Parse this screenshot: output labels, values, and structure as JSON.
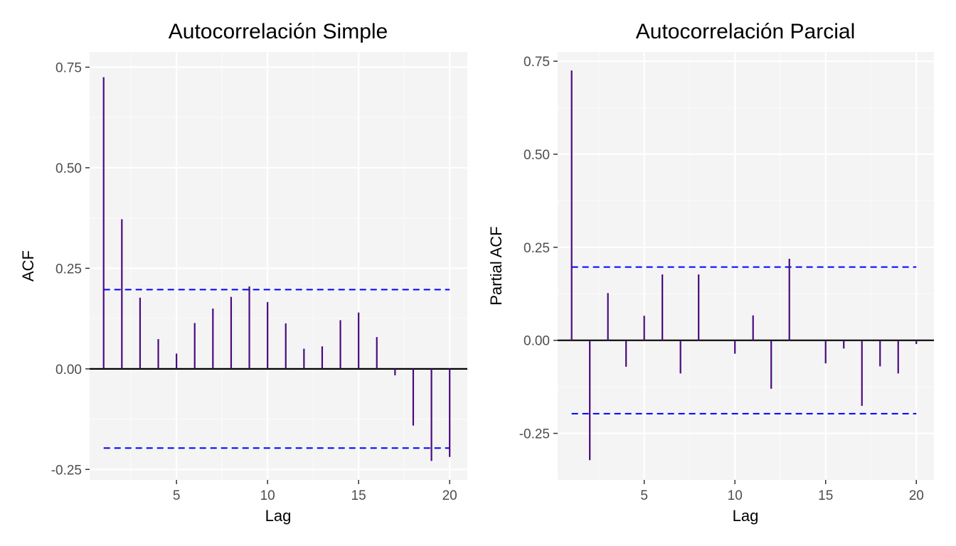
{
  "colors": {
    "panel_background": "#f4f4f4",
    "grid_major": "#ffffff",
    "grid_minor": "#fafafa",
    "bars": "#4b0a7f",
    "zero_line": "#000000",
    "confidence_lines": "#0000ff",
    "tick_text": "#4d4d4d"
  },
  "chart_data": [
    {
      "type": "bar",
      "style": "lollipop-spikes",
      "title": "Autocorrelación Simple",
      "xlabel": "Lag",
      "ylabel": "ACF",
      "xlim": [
        0.23,
        20.97
      ],
      "ylim": [
        -0.276,
        0.788
      ],
      "x_ticks": [
        5,
        10,
        15,
        20
      ],
      "x_tick_labels": [
        "5",
        "10",
        "15",
        "20"
      ],
      "y_ticks": [
        -0.25,
        0.0,
        0.25,
        0.5,
        0.75
      ],
      "y_tick_labels": [
        "-0.25",
        "0.00",
        "0.25",
        "0.50",
        "0.75"
      ],
      "grid": true,
      "confidence_bounds": [
        0.197,
        -0.197
      ],
      "x": [
        1,
        2,
        3,
        4,
        5,
        6,
        7,
        8,
        9,
        10,
        11,
        12,
        13,
        14,
        15,
        16,
        17,
        18,
        19,
        20
      ],
      "values": [
        0.725,
        0.372,
        0.177,
        0.074,
        0.038,
        0.114,
        0.15,
        0.179,
        0.205,
        0.166,
        0.113,
        0.05,
        0.056,
        0.121,
        0.14,
        0.079,
        -0.016,
        -0.141,
        -0.229,
        -0.219
      ]
    },
    {
      "type": "bar",
      "style": "lollipop-spikes",
      "title": "Autocorrelación Parcial",
      "xlabel": "Lag",
      "ylabel": "Partial ACF",
      "xlim": [
        0.23,
        20.97
      ],
      "ylim": [
        -0.375,
        0.775
      ],
      "x_ticks": [
        5,
        10,
        15,
        20
      ],
      "x_tick_labels": [
        "5",
        "10",
        "15",
        "20"
      ],
      "y_ticks": [
        -0.25,
        0.0,
        0.25,
        0.5,
        0.75
      ],
      "y_tick_labels": [
        "-0.25",
        "0.00",
        "0.25",
        "0.50",
        "0.75"
      ],
      "grid": true,
      "confidence_bounds": [
        0.197,
        -0.197
      ],
      "x": [
        1,
        2,
        3,
        4,
        5,
        6,
        7,
        8,
        9,
        10,
        11,
        12,
        13,
        14,
        15,
        16,
        17,
        18,
        19,
        20
      ],
      "values": [
        0.725,
        -0.322,
        0.127,
        -0.071,
        0.066,
        0.177,
        -0.089,
        0.177,
        0.0,
        -0.036,
        0.067,
        -0.13,
        0.219,
        0.0,
        -0.062,
        -0.022,
        -0.176,
        -0.07,
        -0.089,
        -0.01
      ]
    }
  ]
}
